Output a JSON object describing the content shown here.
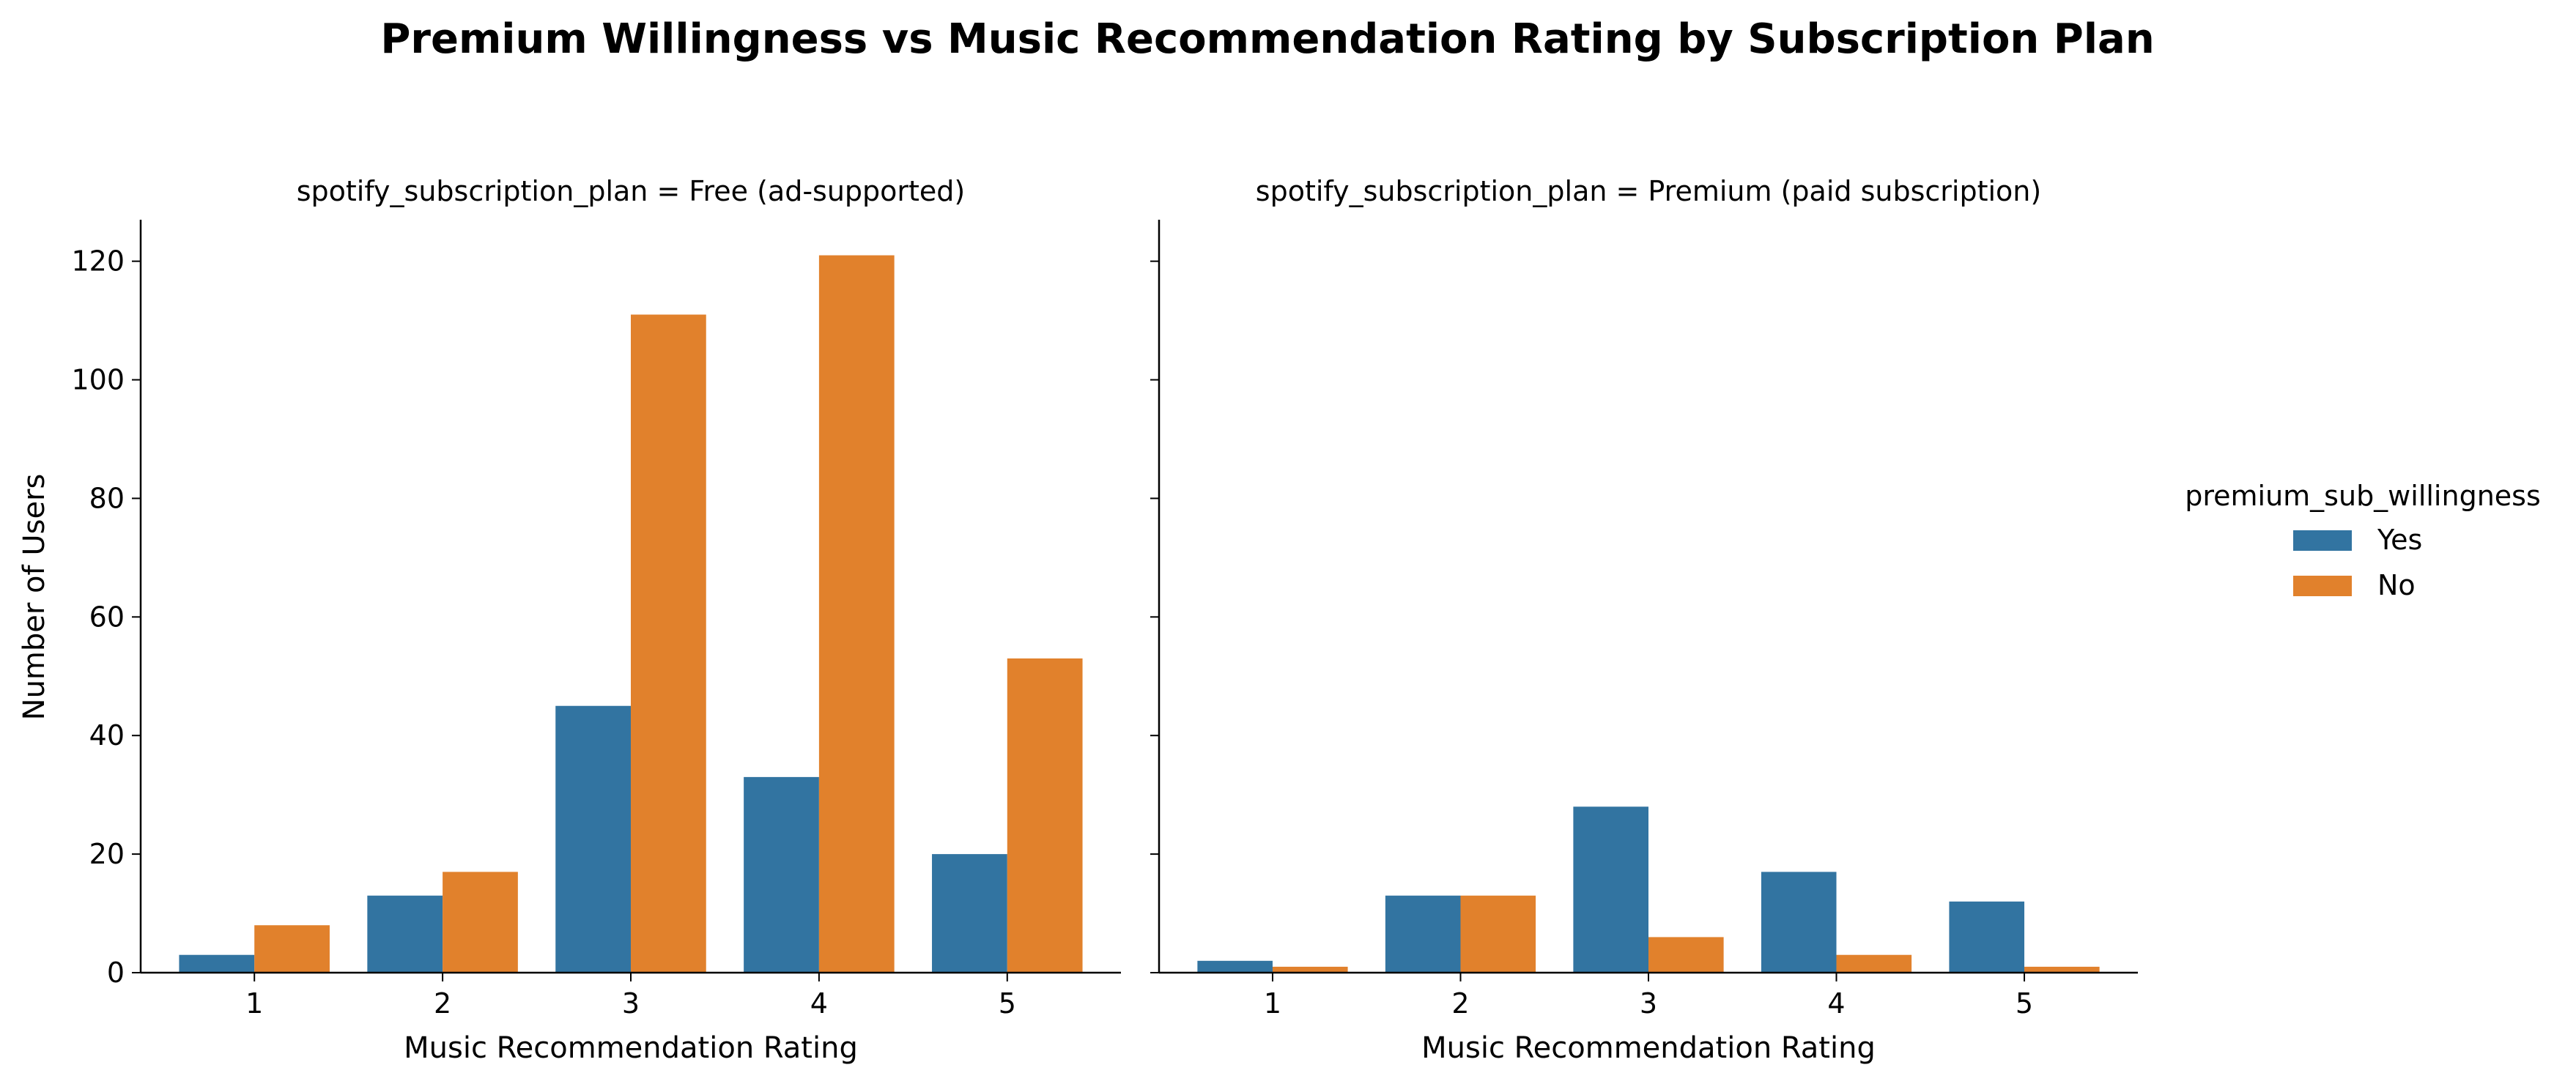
{
  "chart_data": {
    "type": "bar",
    "title": "Premium Willingness vs Music Recommendation Rating by Subscription Plan",
    "xlabel": "Music Recommendation Rating",
    "ylabel": "Number of Users",
    "ylim": [
      0,
      127
    ],
    "yticks": [
      0,
      20,
      40,
      60,
      80,
      100,
      120
    ],
    "categories": [
      "1",
      "2",
      "3",
      "4",
      "5"
    ],
    "grid": false,
    "legend": {
      "title": "premium_sub_willingness",
      "placement": "right",
      "entries": [
        {
          "name": "Yes",
          "color": "#3274a1"
        },
        {
          "name": "No",
          "color": "#e1812c"
        }
      ]
    },
    "facets": [
      {
        "title": "spotify_subscription_plan = Free (ad-supported)",
        "series": [
          {
            "name": "Yes",
            "color": "#3274a1",
            "values": [
              3,
              13,
              45,
              33,
              20
            ]
          },
          {
            "name": "No",
            "color": "#e1812c",
            "values": [
              8,
              17,
              111,
              121,
              53
            ]
          }
        ]
      },
      {
        "title": "spotify_subscription_plan = Premium (paid subscription)",
        "series": [
          {
            "name": "Yes",
            "color": "#3274a1",
            "values": [
              2,
              13,
              28,
              17,
              12
            ]
          },
          {
            "name": "No",
            "color": "#e1812c",
            "values": [
              1,
              13,
              6,
              3,
              1
            ]
          }
        ]
      }
    ]
  }
}
